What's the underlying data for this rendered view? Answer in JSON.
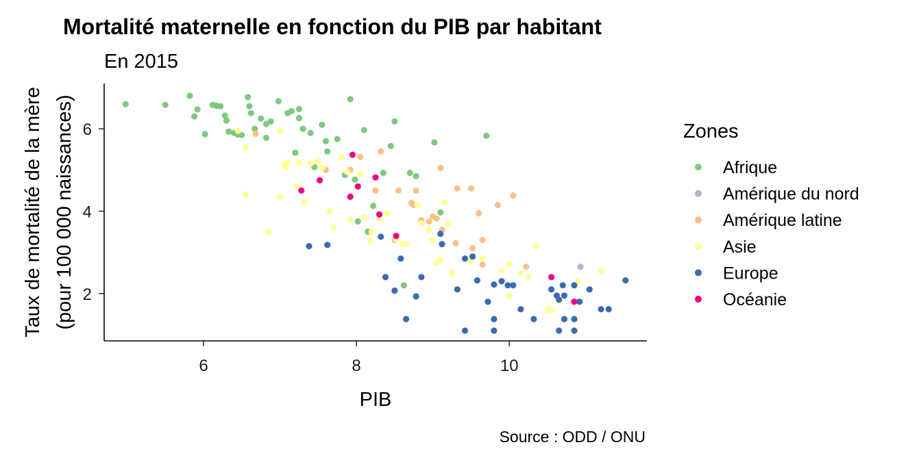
{
  "chart_data": {
    "type": "scatter",
    "title": "Mortalité maternelle en fonction du PIB par habitant",
    "subtitle": "En 2015",
    "xlabel": "PIB",
    "ylabel_line1": "Taux de mortalité de la mère",
    "ylabel_line2": "(pour 100 000 naissances)",
    "caption": "Source : ODD / ONU",
    "xlim": [
      4.7,
      11.8
    ],
    "ylim": [
      0.85,
      7.1
    ],
    "x_ticks": [
      6,
      8,
      10
    ],
    "y_ticks": [
      2,
      4,
      6
    ],
    "grid": false,
    "legend_title": "Zones",
    "legend_position": "right",
    "series": [
      {
        "name": "Afrique",
        "color": "#7fc97f",
        "points": [
          [
            4.98,
            6.6
          ],
          [
            5.5,
            6.58
          ],
          [
            5.82,
            6.8
          ],
          [
            5.88,
            6.3
          ],
          [
            5.92,
            6.47
          ],
          [
            6.02,
            5.87
          ],
          [
            6.12,
            6.58
          ],
          [
            6.17,
            6.56
          ],
          [
            6.22,
            6.55
          ],
          [
            6.28,
            6.32
          ],
          [
            6.3,
            6.2
          ],
          [
            6.33,
            5.93
          ],
          [
            6.4,
            5.9
          ],
          [
            6.45,
            5.86
          ],
          [
            6.5,
            5.85
          ],
          [
            6.58,
            6.77
          ],
          [
            6.6,
            6.55
          ],
          [
            6.62,
            6.38
          ],
          [
            6.67,
            6.0
          ],
          [
            6.75,
            6.25
          ],
          [
            6.82,
            5.78
          ],
          [
            6.82,
            6.12
          ],
          [
            6.88,
            6.18
          ],
          [
            6.98,
            6.67
          ],
          [
            7.1,
            6.38
          ],
          [
            7.15,
            6.43
          ],
          [
            7.2,
            5.42
          ],
          [
            7.25,
            6.26
          ],
          [
            7.25,
            6.48
          ],
          [
            7.3,
            6.0
          ],
          [
            7.4,
            5.9
          ],
          [
            7.45,
            5.07
          ],
          [
            7.55,
            6.1
          ],
          [
            7.6,
            5.7
          ],
          [
            7.62,
            5.45
          ],
          [
            7.75,
            5.75
          ],
          [
            7.85,
            4.88
          ],
          [
            7.92,
            6.72
          ],
          [
            7.98,
            4.77
          ],
          [
            8.02,
            3.75
          ],
          [
            8.1,
            5.97
          ],
          [
            8.15,
            3.5
          ],
          [
            8.22,
            4.13
          ],
          [
            8.35,
            4.93
          ],
          [
            8.45,
            5.58
          ],
          [
            8.5,
            6.18
          ],
          [
            8.62,
            2.2
          ],
          [
            8.7,
            4.93
          ],
          [
            8.78,
            4.85
          ],
          [
            9.02,
            5.67
          ],
          [
            9.1,
            3.97
          ],
          [
            9.7,
            5.83
          ]
        ]
      },
      {
        "name": "Amérique du nord",
        "color": "#beaed4",
        "points": [
          [
            10.93,
            2.65
          ]
        ]
      },
      {
        "name": "Amérique latine",
        "color": "#fdc086",
        "points": [
          [
            6.68,
            5.88
          ],
          [
            7.6,
            5.0
          ],
          [
            7.92,
            5.0
          ],
          [
            8.05,
            5.32
          ],
          [
            8.25,
            4.5
          ],
          [
            8.32,
            5.45
          ],
          [
            8.5,
            3.3
          ],
          [
            8.55,
            4.5
          ],
          [
            8.72,
            4.2
          ],
          [
            8.75,
            4.15
          ],
          [
            8.78,
            4.5
          ],
          [
            8.85,
            3.78
          ],
          [
            8.95,
            3.75
          ],
          [
            9.0,
            3.87
          ],
          [
            9.05,
            3.82
          ],
          [
            9.1,
            5.05
          ],
          [
            9.12,
            3.55
          ],
          [
            9.3,
            3.22
          ],
          [
            9.32,
            4.55
          ],
          [
            9.5,
            4.55
          ],
          [
            9.52,
            3.1
          ],
          [
            9.6,
            3.95
          ],
          [
            9.65,
            3.3
          ],
          [
            9.65,
            2.7
          ],
          [
            9.85,
            4.15
          ],
          [
            10.05,
            4.38
          ],
          [
            10.22,
            2.65
          ]
        ]
      },
      {
        "name": "Asie",
        "color": "#ffff99",
        "points": [
          [
            6.45,
            5.95
          ],
          [
            6.55,
            5.55
          ],
          [
            6.55,
            4.4
          ],
          [
            6.85,
            3.48
          ],
          [
            7.0,
            5.95
          ],
          [
            7.0,
            4.35
          ],
          [
            7.05,
            5.12
          ],
          [
            7.08,
            5.07
          ],
          [
            7.1,
            5.2
          ],
          [
            7.22,
            4.6
          ],
          [
            7.25,
            5.18
          ],
          [
            7.32,
            4.22
          ],
          [
            7.4,
            5.15
          ],
          [
            7.5,
            5.2
          ],
          [
            7.55,
            5.05
          ],
          [
            7.65,
            4.0
          ],
          [
            7.7,
            3.6
          ],
          [
            7.8,
            5.32
          ],
          [
            7.88,
            4.95
          ],
          [
            7.92,
            3.8
          ],
          [
            8.05,
            4.9
          ],
          [
            8.1,
            3.85
          ],
          [
            8.18,
            3.28
          ],
          [
            8.2,
            3.5
          ],
          [
            8.3,
            3.8
          ],
          [
            8.4,
            3.95
          ],
          [
            8.52,
            3.32
          ],
          [
            8.6,
            3.2
          ],
          [
            8.65,
            3.2
          ],
          [
            8.8,
            4.15
          ],
          [
            8.85,
            3.7
          ],
          [
            8.95,
            3.55
          ],
          [
            9.0,
            3.3
          ],
          [
            9.05,
            2.75
          ],
          [
            9.1,
            2.82
          ],
          [
            9.15,
            4.22
          ],
          [
            9.2,
            3.7
          ],
          [
            9.25,
            2.5
          ],
          [
            9.5,
            2.8
          ],
          [
            9.65,
            2.85
          ],
          [
            9.9,
            2.55
          ],
          [
            10.0,
            2.72
          ],
          [
            10.0,
            1.95
          ],
          [
            10.15,
            2.5
          ],
          [
            10.25,
            2.4
          ],
          [
            10.35,
            3.15
          ],
          [
            10.5,
            1.6
          ],
          [
            10.55,
            1.6
          ],
          [
            10.65,
            1.8
          ],
          [
            10.9,
            2.3
          ],
          [
            11.2,
            2.55
          ]
        ]
      },
      {
        "name": "Europe",
        "color": "#386cb0",
        "points": [
          [
            7.38,
            3.15
          ],
          [
            7.62,
            3.18
          ],
          [
            8.32,
            3.38
          ],
          [
            8.38,
            2.4
          ],
          [
            8.5,
            2.07
          ],
          [
            8.58,
            2.85
          ],
          [
            8.65,
            1.38
          ],
          [
            8.78,
            1.93
          ],
          [
            8.85,
            2.4
          ],
          [
            9.1,
            3.45
          ],
          [
            9.12,
            3.2
          ],
          [
            9.32,
            2.1
          ],
          [
            9.42,
            2.85
          ],
          [
            9.42,
            1.1
          ],
          [
            9.52,
            2.9
          ],
          [
            9.58,
            2.32
          ],
          [
            9.72,
            1.8
          ],
          [
            9.8,
            2.22
          ],
          [
            9.8,
            1.38
          ],
          [
            9.8,
            1.1
          ],
          [
            9.9,
            2.3
          ],
          [
            9.98,
            2.2
          ],
          [
            10.05,
            2.2
          ],
          [
            10.15,
            1.62
          ],
          [
            10.32,
            1.38
          ],
          [
            10.55,
            2.1
          ],
          [
            10.62,
            1.95
          ],
          [
            10.65,
            1.85
          ],
          [
            10.65,
            1.1
          ],
          [
            10.7,
            2.2
          ],
          [
            10.72,
            1.38
          ],
          [
            10.72,
            1.95
          ],
          [
            10.85,
            2.2
          ],
          [
            10.85,
            1.38
          ],
          [
            10.85,
            1.1
          ],
          [
            10.92,
            1.8
          ],
          [
            11.05,
            2.1
          ],
          [
            11.2,
            1.62
          ],
          [
            11.3,
            1.62
          ],
          [
            11.52,
            2.32
          ]
        ]
      },
      {
        "name": "Océanie",
        "color": "#f0027f",
        "points": [
          [
            7.28,
            4.5
          ],
          [
            7.52,
            4.75
          ],
          [
            7.92,
            4.35
          ],
          [
            7.95,
            5.37
          ],
          [
            8.02,
            4.6
          ],
          [
            8.25,
            4.82
          ],
          [
            8.3,
            3.92
          ],
          [
            8.52,
            3.4
          ],
          [
            10.55,
            2.4
          ],
          [
            10.85,
            1.8
          ]
        ]
      }
    ]
  }
}
